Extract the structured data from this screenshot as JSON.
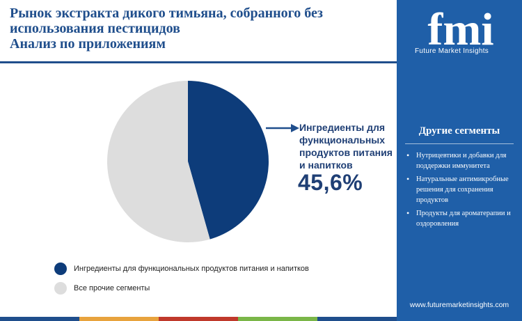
{
  "title": {
    "line1": "Рынок экстракта дикого тимьяна, собранного без",
    "line2": "использования пестицидов",
    "line3": "Анализ по приложениям"
  },
  "colors": {
    "primary": "#1f4e8c",
    "primary_dark": "#0d3c7a",
    "secondary": "#dddddd",
    "sidebar": "#1f5fa8",
    "bar": [
      "#1f4e8c",
      "#e8a33d",
      "#c0392b",
      "#7ab648",
      "#1f4e8c"
    ]
  },
  "chart_data": {
    "type": "pie",
    "slices": [
      {
        "label": "Ингредиенты для функциональных продуктов питания и напитков",
        "value": 45.6,
        "color": "#0d3c7a"
      },
      {
        "label": "Все прочие сегменты",
        "value": 54.4,
        "color": "#dddddd"
      }
    ],
    "callout": {
      "label_lines": [
        "Ингредиенты для",
        "функциональных",
        "продуктов питания",
        "и напитков"
      ],
      "value": "45,6%"
    },
    "legend": [
      "Ингредиенты для функциональных продуктов питания и напитков",
      "Все прочие сегменты"
    ],
    "legend_placement": "bottom-left"
  },
  "sidebar": {
    "logo_text": "fmi",
    "logo_sub": "Future Market Insights",
    "heading": "Другие сегменты",
    "items": [
      "Нутрицевтики и добавки для поддержки иммунитета",
      "Натуральные антимикробные решения для сохранения продуктов",
      "Продукты для ароматерапии и оздоровления"
    ],
    "url": "www.futuremarketinsights.com"
  }
}
